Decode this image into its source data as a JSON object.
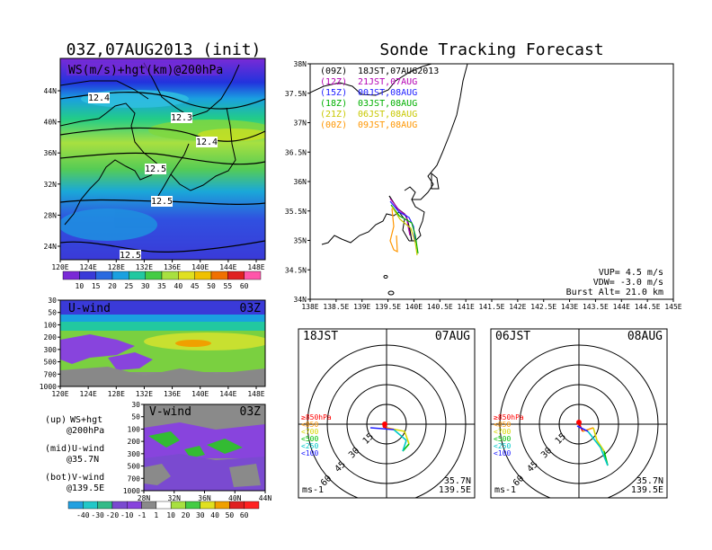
{
  "left_map": {
    "title": "03Z,07AUG2013 (init)",
    "label": "WS(m/s)+hgt(km)@200hPa",
    "lat_ticks": [
      "44N",
      "40N",
      "36N",
      "32N",
      "28N",
      "24N"
    ],
    "lon_ticks": [
      "120E",
      "124E",
      "128E",
      "132E",
      "136E",
      "140E",
      "144E",
      "148E"
    ],
    "contour_labels": [
      "12.4",
      "12.3",
      "12.4",
      "12.5",
      "12.5",
      "12.5"
    ],
    "colorbar_ticks": [
      "10",
      "15",
      "20",
      "25",
      "30",
      "35",
      "40",
      "45",
      "50",
      "55",
      "60"
    ]
  },
  "u_panel": {
    "name": "U-wind",
    "time": "03Z",
    "p_ticks": [
      "30",
      "50",
      "100",
      "200",
      "300",
      "500",
      "700",
      "1000"
    ],
    "lon_ticks": [
      "120E",
      "124E",
      "128E",
      "132E",
      "136E",
      "140E",
      "144E",
      "148E"
    ]
  },
  "v_panel": {
    "name": "V-wind",
    "time": "03Z",
    "p_ticks": [
      "30",
      "50",
      "100",
      "200",
      "300",
      "500",
      "700",
      "1000"
    ],
    "lat_ticks": [
      "28N",
      "32N",
      "36N",
      "40N",
      "44N"
    ]
  },
  "legend_notes": [
    {
      "tag": "(up)",
      "text": "WS+hgt",
      "sub": "@200hPa"
    },
    {
      "tag": "(mid)",
      "text": "U-wind",
      "sub": "@35.7N"
    },
    {
      "tag": "(bot)",
      "text": "V-wind",
      "sub": "@139.5E"
    }
  ],
  "bottom_colorbar_ticks": [
    "-40",
    "-30",
    "-20",
    "-10",
    "-1",
    "1",
    "10",
    "20",
    "30",
    "40",
    "50",
    "60"
  ],
  "tracking": {
    "title": "Sonde Tracking Forecast",
    "lat_ticks": [
      "38N",
      "37.5N",
      "37N",
      "36.5N",
      "36N",
      "35.5N",
      "35N",
      "34.5N",
      "34N"
    ],
    "lon_ticks": [
      "138E",
      "138.5E",
      "139E",
      "139.5E",
      "140E",
      "140.5E",
      "141E",
      "141.5E",
      "142E",
      "142.5E",
      "143E",
      "143.5E",
      "144E",
      "144.5E",
      "145E"
    ],
    "runs": [
      {
        "tag": "(09Z)",
        "text": "18JST,07AUG2013",
        "color": "#000000"
      },
      {
        "tag": "(12Z)",
        "text": "21JST,07AUG",
        "color": "#b400b4"
      },
      {
        "tag": "(15Z)",
        "text": "00JST,08AUG",
        "color": "#2020ff"
      },
      {
        "tag": "(18Z)",
        "text": "03JST,08AUG",
        "color": "#00b000"
      },
      {
        "tag": "(21Z)",
        "text": "06JST,08AUG",
        "color": "#c8c800"
      },
      {
        "tag": "(00Z)",
        "text": "09JST,08AUG",
        "color": "#ff9600"
      }
    ],
    "params": [
      "VUP= 4.5 m/s",
      "VDW= -3.0 m/s",
      "Burst Alt= 21.0 km"
    ]
  },
  "hodo1": {
    "time": "18JST",
    "date": "07AUG",
    "ring_labels": [
      "15",
      "30",
      "45",
      "60"
    ],
    "levels": [
      {
        "label": "≥850hPa",
        "color": "#ff0000"
      },
      {
        "label": "<850",
        "color": "#ff9600"
      },
      {
        "label": "<700",
        "color": "#d8d800"
      },
      {
        "label": "<500",
        "color": "#00c000"
      },
      {
        "label": "<250",
        "color": "#00c8c8"
      },
      {
        "label": "<100",
        "color": "#2020ff"
      }
    ],
    "unit": "ms-1",
    "lat": "35.7N",
    "lon": "139.5E"
  },
  "hodo2": {
    "time": "06JST",
    "date": "08AUG",
    "ring_labels": [
      "15",
      "30",
      "45",
      "60"
    ],
    "levels": [
      {
        "label": "≥850hPa",
        "color": "#ff0000"
      },
      {
        "label": "<850",
        "color": "#ff9600"
      },
      {
        "label": "<700",
        "color": "#d8d800"
      },
      {
        "label": "<500",
        "color": "#00c000"
      },
      {
        "label": "<250",
        "color": "#00c8c8"
      },
      {
        "label": "<100",
        "color": "#2020ff"
      }
    ],
    "unit": "ms-1",
    "lat": "35.7N",
    "lon": "139.5E"
  }
}
